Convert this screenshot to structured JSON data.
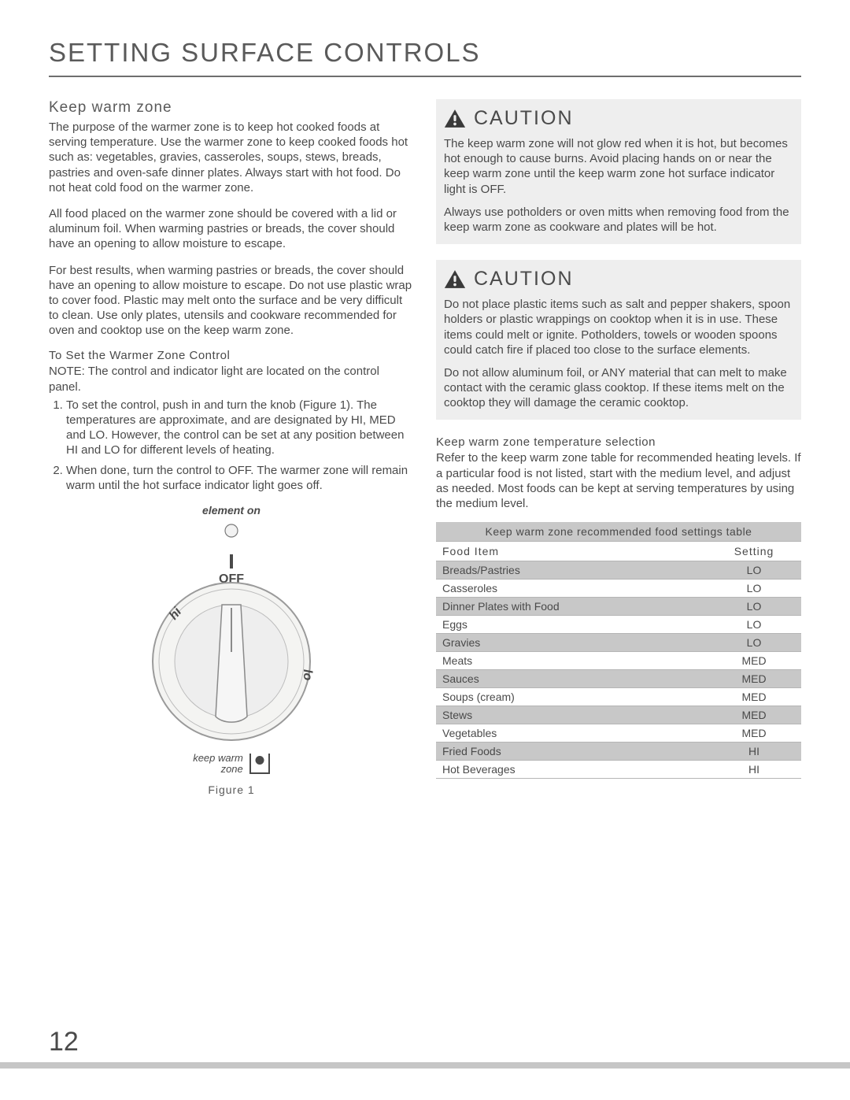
{
  "title": "SETTING SURFACE CONTROLS",
  "page_number": "12",
  "colors": {
    "text": "#4a4a4a",
    "rule": "#6e6e6e",
    "shade": "#c8c8c8",
    "caution_bg": "#eeeeee",
    "footer_bar": "#c6c6c6"
  },
  "left": {
    "heading": "Keep warm zone",
    "p1": "The purpose of the warmer zone is to keep hot cooked foods at serving temperature. Use the warmer zone to keep cooked foods hot such as: vegetables, gravies, casseroles, soups, stews, breads, pastries and oven-safe dinner plates. Always start with hot food. Do not heat cold food on the warmer zone.",
    "p2": "All food placed on the warmer zone should be covered with a lid or aluminum foil. When warming pastries or breads, the cover should have an opening to allow moisture to escape.",
    "p3": "For best results, when warming pastries or breads, the cover should have an opening to allow moisture to escape. Do not use plastic wrap to cover food. Plastic may melt onto the surface and be very difficult to clean. Use only plates, utensils and cookware recommended for oven and cooktop use on the keep warm zone.",
    "set_label": "To Set the Warmer Zone Control",
    "note": "NOTE: The control and indicator light are located on the control panel.",
    "step1": "To set the control, push in and turn the knob (Figure 1). The temperatures are approximate, and are designated by HI, MED and LO. However, the control can be set at any position between HI and LO for different levels of heating.",
    "step2": "When done, turn the control to OFF. The warmer zone will remain warm until the hot surface indicator light goes off.",
    "figure": {
      "element_on": "element on",
      "off_label": "OFF",
      "hi_label": "hi",
      "lo_label": "lo",
      "kwz_label": "keep warm\nzone",
      "caption": "Figure 1"
    }
  },
  "right": {
    "caution_word": "CAUTION",
    "caution1_p1": "The keep warm zone will not glow red when it is hot, but becomes hot enough to cause burns. Avoid placing hands on or near the keep warm zone until the keep warm zone hot surface indicator light is OFF.",
    "caution1_p2": "Always use potholders or oven mitts when removing food from the keep warm zone as cookware and plates will be hot.",
    "caution2_p1": "Do not place plastic items such as salt and pepper shakers, spoon holders or plastic wrappings on cooktop when it is in use. These items could melt or ignite. Potholders, towels or wooden spoons could catch fire if placed too close to the surface elements.",
    "caution2_p2": "Do not allow aluminum foil, or ANY material that can melt to make contact with the ceramic glass cooktop. If these items melt on the cooktop they will damage the ceramic cooktop.",
    "temp_heading": "Keep warm zone temperature selection",
    "temp_body": "Refer to the keep warm zone table for recommended heating levels. If a particular food is not listed, start with the medium level, and adjust as needed. Most foods can be kept at serving temperatures by using the medium level.",
    "table": {
      "title": "Keep warm zone recommended food settings table",
      "col1": "Food Item",
      "col2": "Setting",
      "rows": [
        {
          "item": "Breads/Pastries",
          "setting": "LO",
          "shade": true
        },
        {
          "item": "Casseroles",
          "setting": "LO",
          "shade": false
        },
        {
          "item": "Dinner Plates with Food",
          "setting": "LO",
          "shade": true
        },
        {
          "item": "Eggs",
          "setting": "LO",
          "shade": false
        },
        {
          "item": "Gravies",
          "setting": "LO",
          "shade": true
        },
        {
          "item": "Meats",
          "setting": "MED",
          "shade": false
        },
        {
          "item": "Sauces",
          "setting": "MED",
          "shade": true
        },
        {
          "item": "Soups (cream)",
          "setting": "MED",
          "shade": false
        },
        {
          "item": "Stews",
          "setting": "MED",
          "shade": true
        },
        {
          "item": "Vegetables",
          "setting": "MED",
          "shade": false
        },
        {
          "item": "Fried Foods",
          "setting": "HI",
          "shade": true
        },
        {
          "item": "Hot Beverages",
          "setting": "HI",
          "shade": false
        }
      ]
    }
  }
}
